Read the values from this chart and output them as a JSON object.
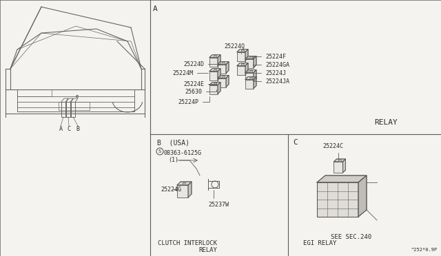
{
  "bg_color": "#f5f3ef",
  "line_color": "#5a5a5a",
  "text_color": "#2a2a2a",
  "section_A_label": "A",
  "section_B_label": "B  (USA)",
  "section_C_label": "C",
  "relay_label": "RELAY",
  "clutch_label": "CLUTCH INTERLOCK\n       RELAY",
  "egi_label": "EGI RELAY",
  "see_sec_label": "SEE SEC.240",
  "part_B1_circle": "S",
  "part_B1": "08363-6125G",
  "part_B1b": "(1)",
  "part_B2": "25224G",
  "part_B3": "25237W",
  "part_C": "25224C",
  "doc_code": "^252*0.9P",
  "parts_A_left_labels": [
    "25224Q",
    "25224D",
    "25224M",
    "25224E",
    "25630",
    "25224P"
  ],
  "parts_A_right_labels": [
    "25224F",
    "25224GA",
    "25224J",
    "25224JA"
  ],
  "font_size": 6.0,
  "border_lw": 0.8
}
